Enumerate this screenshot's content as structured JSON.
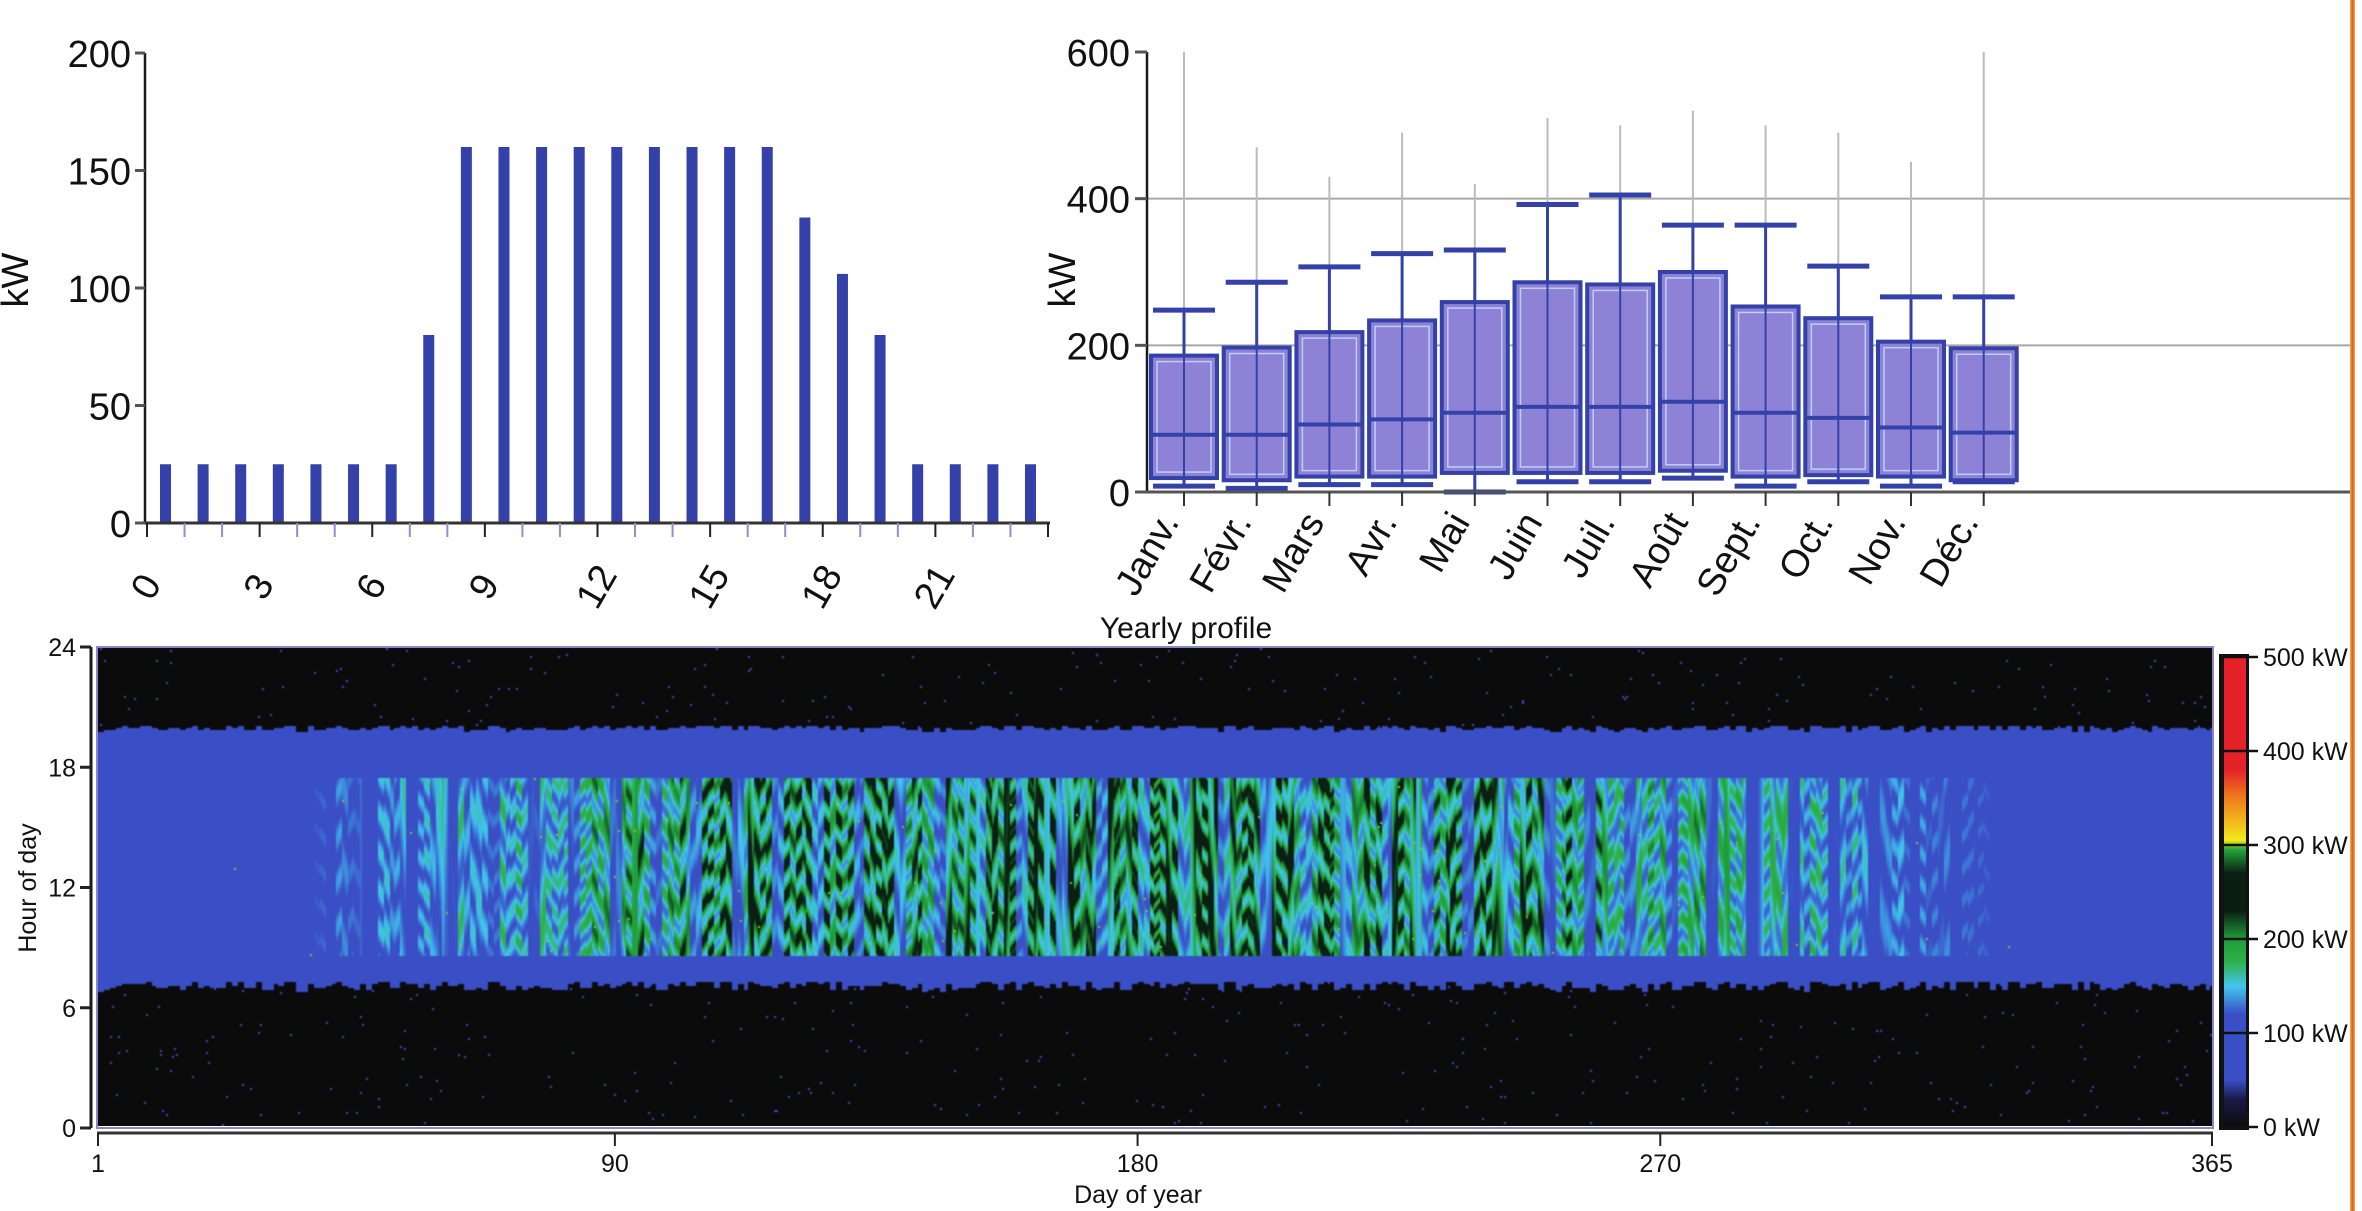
{
  "colors": {
    "bar": "#3441a8",
    "box_fill": "#8e82d6",
    "box_stroke": "#3441a8",
    "axis": "#1a1a1a",
    "grid": "#8a8a8a",
    "edge_accent": "#e2571c"
  },
  "chart_data": [
    {
      "id": "daily-profile",
      "type": "bar",
      "title": "",
      "xlabel": "",
      "ylabel": "kW",
      "ylim": [
        0,
        200
      ],
      "yticks": [
        0,
        50,
        100,
        150,
        200
      ],
      "xtick_labels": [
        "0",
        "3",
        "6",
        "9",
        "12",
        "15",
        "18",
        "21"
      ],
      "categories": [
        0,
        1,
        2,
        3,
        4,
        5,
        6,
        7,
        8,
        9,
        10,
        11,
        12,
        13,
        14,
        15,
        16,
        17,
        18,
        19,
        20,
        21,
        22,
        23
      ],
      "values": [
        25,
        25,
        25,
        25,
        25,
        25,
        25,
        80,
        160,
        160,
        160,
        160,
        160,
        160,
        160,
        160,
        160,
        130,
        106,
        80,
        25,
        25,
        25,
        25
      ],
      "grid": false
    },
    {
      "id": "monthly-boxplot",
      "type": "box",
      "title": "",
      "xlabel": "",
      "ylabel": "kW",
      "ylim": [
        0,
        600
      ],
      "yticks": [
        0,
        200,
        400,
        600
      ],
      "grid": true,
      "categories": [
        "Janv.",
        "Févr.",
        "Mars",
        "Avr.",
        "Mai",
        "Juin",
        "Juil.",
        "Août",
        "Sept.",
        "Oct.",
        "Nov.",
        "Déc."
      ],
      "series": [
        {
          "name": "whisker_low",
          "values": [
            8,
            5,
            10,
            10,
            0,
            14,
            14,
            19,
            8,
            14,
            8,
            14
          ]
        },
        {
          "name": "q1",
          "values": [
            19,
            16,
            21,
            21,
            26,
            26,
            26,
            29,
            21,
            23,
            21,
            16
          ]
        },
        {
          "name": "median",
          "values": [
            78,
            78,
            92,
            99,
            108,
            116,
            116,
            123,
            108,
            101,
            88,
            81
          ]
        },
        {
          "name": "q3",
          "values": [
            186,
            197,
            218,
            234,
            259,
            286,
            283,
            300,
            253,
            237,
            205,
            196
          ]
        },
        {
          "name": "whisker_high",
          "values": [
            248,
            286,
            307,
            325,
            330,
            392,
            405,
            364,
            364,
            308,
            266,
            266
          ]
        },
        {
          "name": "max_outlier_line",
          "values": [
            600,
            470,
            430,
            490,
            420,
            510,
            500,
            520,
            500,
            490,
            450,
            600
          ]
        }
      ]
    },
    {
      "id": "yearly-profile",
      "type": "heatmap",
      "title": "Yearly profile",
      "xlabel": "Day of year",
      "ylabel": "Hour of day",
      "xlim": [
        1,
        365
      ],
      "ylim": [
        0,
        24
      ],
      "xticks": [
        1,
        90,
        180,
        270,
        365
      ],
      "yticks": [
        0,
        6,
        12,
        18,
        24
      ],
      "colorbar": {
        "range": [
          0,
          500
        ],
        "ticks": [
          "0 kW",
          "100 kW",
          "200 kW",
          "300 kW",
          "400 kW",
          "500 kW"
        ],
        "tick_values": [
          0,
          100,
          200,
          300,
          400,
          500
        ],
        "stops": [
          {
            "v": 0,
            "c": "#0b0b0b"
          },
          {
            "v": 30,
            "c": "#1a1a4a"
          },
          {
            "v": 50,
            "c": "#3a4fc6"
          },
          {
            "v": 120,
            "c": "#3a4fc6"
          },
          {
            "v": 150,
            "c": "#41c6ee"
          },
          {
            "v": 175,
            "c": "#2fb24a"
          },
          {
            "v": 200,
            "c": "#1f9c3c"
          },
          {
            "v": 230,
            "c": "#0b1e12"
          },
          {
            "v": 270,
            "c": "#0b1e12"
          },
          {
            "v": 295,
            "c": "#22a43a"
          },
          {
            "v": 305,
            "c": "#f2ea1a"
          },
          {
            "v": 350,
            "c": "#f07c1a"
          },
          {
            "v": 380,
            "c": "#e5222a"
          },
          {
            "v": 500,
            "c": "#e5222a"
          }
        ]
      },
      "summary": {
        "active_hours": [
          7,
          20
        ],
        "night_value_kw": 0,
        "shoulder_value_kw": 100,
        "midday_peak_range_kw": [
          150,
          300
        ],
        "peak_season_days": [
          60,
          300
        ]
      }
    }
  ]
}
